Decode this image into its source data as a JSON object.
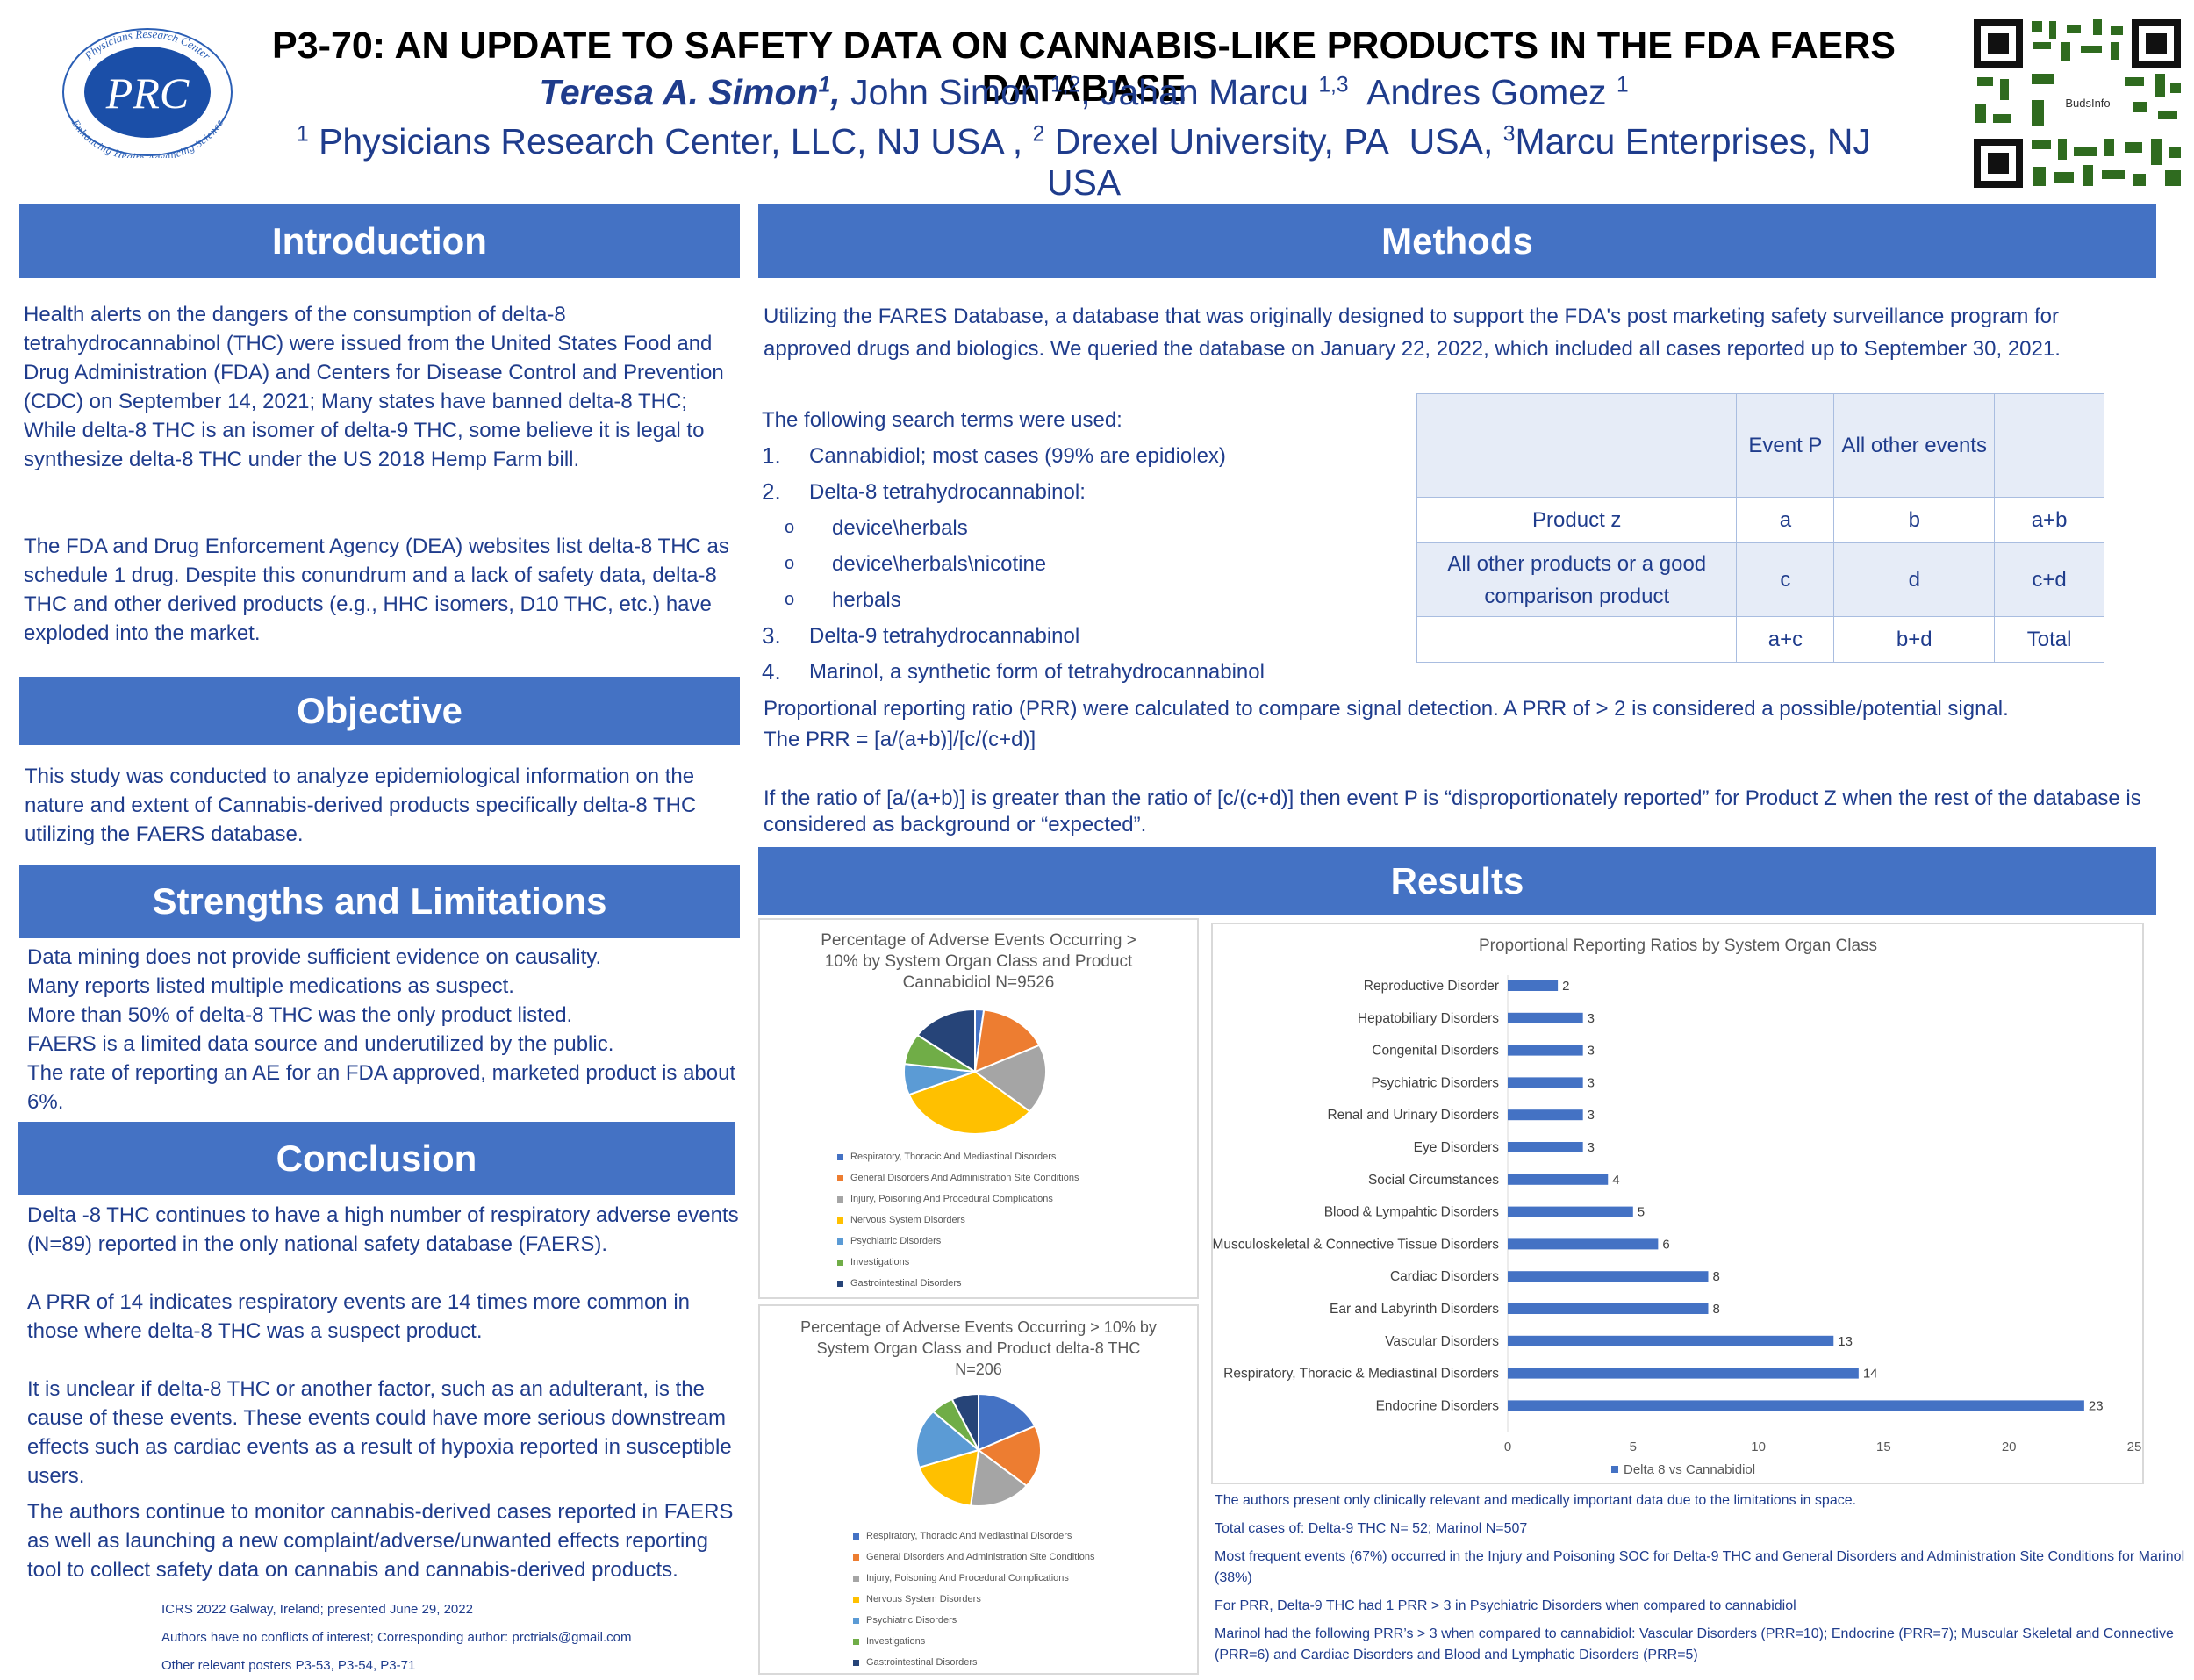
{
  "header": {
    "logo_text": "PRC",
    "logo_ring_top": "Physicians Research Center",
    "logo_ring_bottom": "Enhancing Health-Advancing Science",
    "title": "P3-70: AN UPDATE TO SAFETY DATA ON CANNABIS-LIKE PRODUCTS IN THE FDA FAERS DATABASE",
    "qr_label": "BudsInfo"
  },
  "intro": {
    "heading": "Introduction",
    "p1": "Health alerts on the dangers of the consumption of delta-8 tetrahydrocannabinol (THC) were issued from the United States Food and Drug Administration (FDA) and Centers for Disease Control and Prevention (CDC) on September 14, 2021;    Many states have banned delta-8 THC;  While delta-8 THC is an isomer of delta-9 THC, some believe it is legal to synthesize delta-8 THC under the US 2018 Hemp Farm bill.",
    "p2": "The FDA and Drug Enforcement Agency (DEA) websites list delta-8 THC as schedule 1 drug.  Despite this conundrum and a lack of safety data, delta-8 THC and other derived products (e.g., HHC isomers, D10 THC, etc.) have exploded into the market."
  },
  "objective": {
    "heading": "Objective",
    "p1": "This study was conducted to analyze epidemiological information on the nature and extent of Cannabis-derived products specifically delta-8 THC utilizing the FAERS database."
  },
  "strengths": {
    "heading": "Strengths and Limitations",
    "lines": [
      "Data mining does not provide sufficient evidence on causality.",
      "Many reports listed multiple medications as suspect.",
      "More than 50% of delta-8 THC was the only product listed.",
      "FAERS is a limited data source and underutilized by the public.",
      "The rate of reporting an AE for an FDA approved, marketed product is about 6%."
    ]
  },
  "conclusion": {
    "heading": "Conclusion",
    "p1": "Delta -8 THC continues to have a high number of respiratory adverse events (N=89) reported in the only national safety database (FAERS).",
    "p2": "A PRR of 14 indicates respiratory events are 14 times more common in those where delta-8 THC was a suspect product.",
    "p3": "It is unclear if delta-8 THC or another factor, such as an adulterant, is the cause of these events. These events could have more serious downstream effects such as cardiac events as a result of hypoxia reported in susceptible users.",
    "p4": "The authors continue to monitor cannabis-derived cases reported in FAERS as well as launching a new complaint/adverse/unwanted effects reporting tool to collect safety data on cannabis and cannabis-derived products.",
    "footer": [
      "ICRS 2022 Galway, Ireland; presented June 29, 2022",
      "Authors have no conflicts of interest; Corresponding author: prctrials@gmail.com",
      "Other relevant posters P3-53, P3-54, P3-71"
    ]
  },
  "methods": {
    "heading": "Methods",
    "p1": "Utilizing the FARES Database, a database that was originally designed to support the FDA's post marketing safety surveillance program for approved drugs and biologics. We queried the database on January 22, 2022, which included all cases reported up to September 30, 2021.",
    "terms_intro": "The following search terms were used:",
    "terms": [
      {
        "n": "1.",
        "t": "Cannabidiol; most cases (99% are epidiolex)"
      },
      {
        "n": "2.",
        "t": "Delta-8 tetrahydrocannabinol:"
      },
      {
        "n": "o",
        "t": "device\\herbals"
      },
      {
        "n": "o",
        "t": "device\\herbals\\nicotine"
      },
      {
        "n": "o",
        "t": "herbals"
      },
      {
        "n": "3.",
        "t": "Delta-9 tetrahydrocannabinol"
      },
      {
        "n": "4.",
        "t": "Marinol, a synthetic form of tetrahydrocannabinol"
      }
    ],
    "table": [
      [
        "",
        "Event  P",
        "All other events",
        ""
      ],
      [
        "Product z",
        "a",
        "b",
        "a+b"
      ],
      [
        "All other products or a good comparison product",
        "c",
        "d",
        "c+d"
      ],
      [
        "",
        "a+c",
        "b+d",
        "Total"
      ]
    ],
    "prr1": "Proportional reporting ratio (PRR) were calculated to compare signal detection. A PRR of > 2 is considered a possible/potential signal.",
    "prr2": "The PRR = [a/(a+b)]/[c/(c+d)]",
    "prr3": "If the ratio of [a/(a+b)] is greater than the ratio of [c/(c+d)]  then event P is “disproportionately reported” for Product Z when the rest of the database is considered as background or “expected”."
  },
  "results": {
    "heading": "Results",
    "notes": [
      "The authors present only clinically relevant and medically important data due to the limitations in space.",
      "Total cases of:  Delta-9 THC N= 52; Marinol N=507",
      "Most frequent events (67%) occurred in the Injury and Poisoning SOC for Delta-9 THC and  General Disorders and Administration Site Conditions for Marinol (38%)",
      "For PRR,  Delta-9 THC had 1 PRR > 3 in Psychiatric Disorders when compared to cannabidiol",
      "Marinol had the following PRR’s > 3 when compared to cannabidiol: Vascular Disorders (PRR=10); Endocrine (PRR=7); Muscular Skeletal and Connective (PRR=6) and Cardiac Disorders and Blood and Lymphatic Disorders (PRR=5)"
    ]
  },
  "chart_data": [
    {
      "type": "pie",
      "title": "Percentage of Adverse Events Occurring > 10% by System Organ Class and Product Cannabidiol  N=9526",
      "categories": [
        "Respiratory, Thoracic And Mediastinal Disorders",
        "General Disorders And Administration Site Conditions",
        "Injury, Poisoning And Procedural Complications",
        "Nervous System Disorders",
        "Psychiatric Disorders",
        "Investigations",
        "Gastrointestinal Disorders"
      ],
      "values": [
        2,
        16,
        18,
        33,
        8,
        8,
        15
      ],
      "colors": [
        "#4472c4",
        "#ed7d31",
        "#a5a5a5",
        "#ffc000",
        "#5b9bd5",
        "#70ad47",
        "#264478"
      ]
    },
    {
      "type": "pie",
      "title": "Percentage of Adverse Events Occurring > 10% by System Organ Class and Product delta-8 THC N=206",
      "categories": [
        "Respiratory, Thoracic And Mediastinal Disorders",
        "General Disorders And Administration Site Conditions",
        "Injury, Poisoning And Procedural Complications",
        "Nervous System Disorders",
        "Psychiatric Disorders",
        "Investigations",
        "Gastrointestinal Disorders"
      ],
      "values": [
        18,
        18,
        16,
        18,
        17,
        6,
        7
      ],
      "colors": [
        "#4472c4",
        "#ed7d31",
        "#a5a5a5",
        "#ffc000",
        "#5b9bd5",
        "#70ad47",
        "#264478"
      ]
    },
    {
      "type": "bar",
      "orientation": "horizontal",
      "title": "Proportional Reporting Ratios by System Organ Class",
      "categories": [
        "Reproductive Disorder",
        "Hepatobiliary Disorders",
        "Congenital Disorders",
        "Psychiatric Disorders",
        "Renal and Urinary Disorders",
        "Eye Disorders",
        "Social Circumstances",
        "Blood & Lympahtic Disorders",
        "Musculoskeletal & Connective Tissue Disorders",
        "Cardiac Disorders",
        "Ear and Labyrinth Disorders",
        "Vascular Disorders",
        "Respiratory, Thoracic & Mediastinal Disorders",
        "Endocrine Disorders"
      ],
      "series": [
        {
          "name": "Delta 8 vs Cannabidiol",
          "values": [
            2,
            3,
            3,
            3,
            3,
            3,
            4,
            5,
            6,
            8,
            8,
            13,
            14,
            23
          ]
        }
      ],
      "xlim": [
        0,
        25
      ],
      "ticks": [
        "0",
        "5",
        "10",
        "15",
        "20",
        "25"
      ],
      "color": "#4472c4"
    }
  ]
}
